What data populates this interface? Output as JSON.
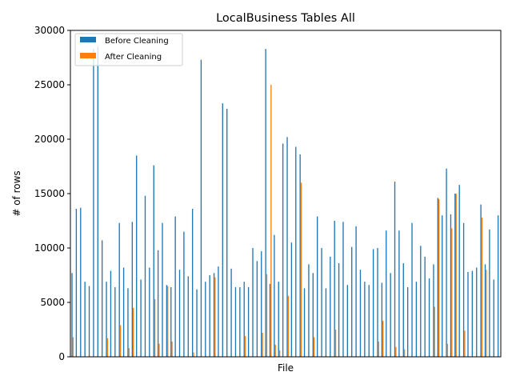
{
  "chart_data": {
    "type": "bar",
    "title": "LocalBusiness Tables All",
    "xlabel": "File",
    "ylabel": "# of rows",
    "ylim": [
      0,
      30000
    ],
    "yticks": [
      0,
      5000,
      10000,
      15000,
      20000,
      25000,
      30000
    ],
    "ytick_labels": [
      "0",
      "5000",
      "10000",
      "15000",
      "20000",
      "25000",
      "30000"
    ],
    "x_tick_labels_shown": false,
    "grid": false,
    "legend_position": "top-left",
    "series": [
      {
        "name": "Before Cleaning",
        "color": "#1f77b4",
        "values": [
          7700,
          13600,
          13700,
          6900,
          6500,
          28300,
          28500,
          10700,
          6900,
          7900,
          6400,
          12300,
          8200,
          6300,
          12400,
          18500,
          7100,
          14800,
          8200,
          17600,
          9800,
          12300,
          6600,
          6400,
          12900,
          8000,
          11500,
          7400,
          13600,
          6200,
          27300,
          6900,
          7500,
          7700,
          8300,
          23300,
          22800,
          8100,
          6400,
          6400,
          6900,
          6400,
          10000,
          8800,
          9700,
          28300,
          6700,
          11200,
          6900,
          19600,
          20200,
          10500,
          19300,
          18600,
          6300,
          8500,
          7700,
          12900,
          10000,
          6300,
          9200,
          12500,
          8600,
          12400,
          6600,
          10100,
          12000,
          8000,
          6900,
          6600,
          9900,
          10000,
          6800,
          11600,
          7700,
          16100,
          11600,
          8600,
          6400,
          12300,
          6900,
          10200,
          9200,
          7200,
          8500,
          14600,
          13000,
          17300,
          13100,
          15000,
          15800,
          12300,
          7800,
          7900,
          8200,
          14000,
          8500,
          11700,
          7100,
          13000
        ]
      },
      {
        "name": "After Cleaning",
        "color": "#ff7f0e",
        "values": [
          1800,
          0,
          0,
          0,
          0,
          0,
          0,
          0,
          1700,
          0,
          0,
          2900,
          0,
          800,
          4500,
          0,
          0,
          0,
          0,
          5300,
          1200,
          0,
          6500,
          1400,
          0,
          0,
          0,
          0,
          400,
          0,
          0,
          0,
          0,
          7300,
          0,
          0,
          0,
          0,
          0,
          0,
          1900,
          0,
          0,
          0,
          2200,
          7600,
          25000,
          1100,
          600,
          0,
          5600,
          0,
          0,
          16000,
          0,
          0,
          1800,
          0,
          0,
          0,
          0,
          2500,
          0,
          0,
          0,
          0,
          0,
          0,
          0,
          0,
          0,
          1400,
          3300,
          0,
          0,
          900,
          0,
          700,
          0,
          0,
          0,
          0,
          0,
          0,
          4600,
          14500,
          0,
          1200,
          11800,
          15000,
          0,
          2400,
          0,
          0,
          0,
          12800,
          8000,
          0,
          0,
          0
        ]
      }
    ]
  }
}
